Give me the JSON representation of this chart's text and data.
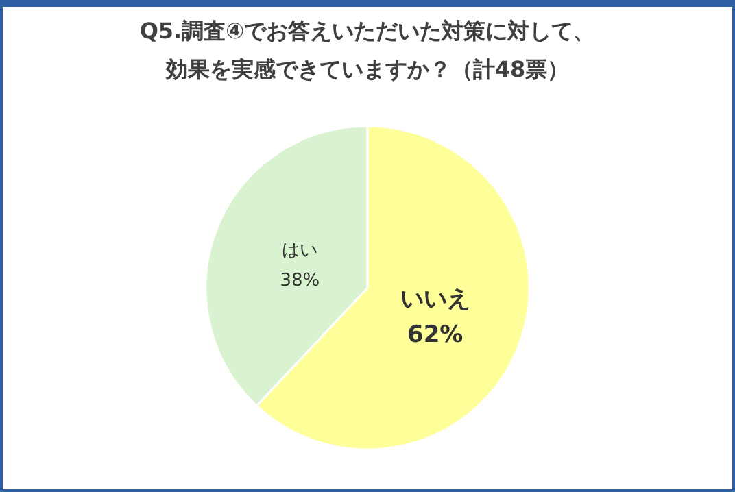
{
  "chart_data": {
    "type": "pie",
    "title": "Q5.調査④でお答えいただいた対策に対して、効果を実感できていますか？（計48票）",
    "categories": [
      "いいえ",
      "はい"
    ],
    "values": [
      62,
      38
    ],
    "value_labels": [
      "62%",
      "38%"
    ],
    "colors": [
      "#ffff99",
      "#d9f2d0"
    ]
  }
}
